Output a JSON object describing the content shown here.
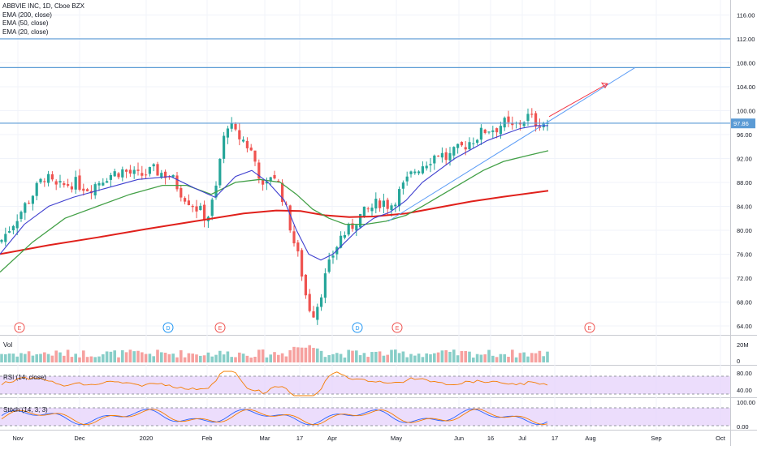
{
  "chart_data": {
    "type": "candlestick",
    "title": "ABBVIE INC, 1D, Cboe BZX",
    "indicators": [
      "EMA (200, close)",
      "EMA (50, close)",
      "EMA (20, close)"
    ],
    "last_price": "97.86",
    "price_axis": [
      "116.00",
      "112.00",
      "108.00",
      "104.00",
      "100.00",
      "96.00",
      "92.00",
      "88.00",
      "84.00",
      "80.00",
      "76.00",
      "72.00",
      "68.00",
      "64.00"
    ],
    "ylim": [
      62.5,
      118.5
    ],
    "time_axis": [
      "Nov",
      "Dec",
      "2020",
      "Feb",
      "Mar",
      "17",
      "Apr",
      "May",
      "Jun",
      "16",
      "Jul",
      "17",
      "Aug",
      "Sep",
      "Oct"
    ],
    "horizontal_lines": [
      112.0,
      107.2,
      97.9
    ],
    "events": [
      "E",
      "D",
      "E",
      "D",
      "E",
      "E"
    ],
    "price_points": [
      [
        0,
        78
      ],
      [
        20,
        82
      ],
      [
        40,
        86
      ],
      [
        55,
        89
      ],
      [
        70,
        87
      ],
      [
        90,
        88
      ],
      [
        110,
        87
      ],
      [
        130,
        89
      ],
      [
        150,
        90
      ],
      [
        170,
        89
      ],
      [
        190,
        90
      ],
      [
        210,
        89
      ],
      [
        225,
        86
      ],
      [
        240,
        84
      ],
      [
        255,
        82
      ],
      [
        265,
        86
      ],
      [
        272,
        93
      ],
      [
        280,
        98
      ],
      [
        290,
        96
      ],
      [
        300,
        95
      ],
      [
        310,
        93
      ],
      [
        318,
        90
      ],
      [
        325,
        86
      ],
      [
        335,
        90
      ],
      [
        345,
        87
      ],
      [
        355,
        82
      ],
      [
        362,
        78
      ],
      [
        370,
        74
      ],
      [
        378,
        68
      ],
      [
        385,
        66
      ],
      [
        392,
        68
      ],
      [
        400,
        72
      ],
      [
        410,
        76
      ],
      [
        420,
        79
      ],
      [
        430,
        80
      ],
      [
        440,
        82
      ],
      [
        450,
        83
      ],
      [
        460,
        84
      ],
      [
        470,
        85
      ],
      [
        480,
        84
      ],
      [
        490,
        86
      ],
      [
        500,
        88
      ],
      [
        510,
        90
      ],
      [
        520,
        91
      ],
      [
        530,
        92
      ],
      [
        540,
        93
      ],
      [
        550,
        92
      ],
      [
        560,
        93
      ],
      [
        570,
        94
      ],
      [
        580,
        95
      ],
      [
        590,
        96
      ],
      [
        600,
        97
      ],
      [
        610,
        97
      ],
      [
        620,
        98
      ],
      [
        630,
        97
      ],
      [
        640,
        98
      ],
      [
        650,
        99
      ],
      [
        660,
        98
      ],
      [
        670,
        98
      ],
      [
        675,
        97.9
      ]
    ],
    "ema20_points": [
      [
        0,
        76
      ],
      [
        30,
        81
      ],
      [
        60,
        84
      ],
      [
        90,
        85.5
      ],
      [
        130,
        87
      ],
      [
        170,
        88.5
      ],
      [
        210,
        89
      ],
      [
        240,
        87
      ],
      [
        265,
        85.5
      ],
      [
        290,
        89
      ],
      [
        310,
        90
      ],
      [
        330,
        88
      ],
      [
        350,
        85
      ],
      [
        365,
        80
      ],
      [
        380,
        76
      ],
      [
        395,
        75
      ],
      [
        410,
        76
      ],
      [
        425,
        78
      ],
      [
        440,
        80
      ],
      [
        460,
        82
      ],
      [
        480,
        83
      ],
      [
        500,
        85
      ],
      [
        520,
        88
      ],
      [
        540,
        90
      ],
      [
        560,
        92
      ],
      [
        580,
        93.5
      ],
      [
        600,
        95
      ],
      [
        620,
        96
      ],
      [
        640,
        97
      ],
      [
        660,
        97.5
      ],
      [
        675,
        97.5
      ]
    ],
    "ema50_points": [
      [
        0,
        73
      ],
      [
        40,
        78
      ],
      [
        80,
        82
      ],
      [
        120,
        84
      ],
      [
        160,
        86
      ],
      [
        200,
        87.5
      ],
      [
        230,
        87.5
      ],
      [
        260,
        86
      ],
      [
        290,
        88
      ],
      [
        320,
        88.5
      ],
      [
        345,
        88
      ],
      [
        365,
        86
      ],
      [
        385,
        83.5
      ],
      [
        405,
        82
      ],
      [
        425,
        81
      ],
      [
        450,
        81
      ],
      [
        475,
        81.5
      ],
      [
        500,
        82.5
      ],
      [
        520,
        84
      ],
      [
        545,
        86
      ],
      [
        570,
        88
      ],
      [
        595,
        90
      ],
      [
        620,
        91.5
      ],
      [
        650,
        92.5
      ],
      [
        675,
        93.3
      ]
    ],
    "ema200_points": [
      [
        0,
        76
      ],
      [
        60,
        77.5
      ],
      [
        120,
        78.8
      ],
      [
        180,
        80.2
      ],
      [
        240,
        81.5
      ],
      [
        300,
        82.8
      ],
      [
        340,
        83.3
      ],
      [
        370,
        83.2
      ],
      [
        400,
        82.5
      ],
      [
        430,
        82.2
      ],
      [
        460,
        82.3
      ],
      [
        500,
        82.8
      ],
      [
        540,
        83.8
      ],
      [
        580,
        84.8
      ],
      [
        620,
        85.6
      ],
      [
        675,
        86.6
      ]
    ],
    "trendlines": [
      {
        "from": [
          478,
          81.5
        ],
        "to": [
          782,
          107.2
        ],
        "color": "#5b9cf6"
      },
      {
        "from": [
          676,
          99.0
        ],
        "to": [
          748,
          104.5
        ],
        "color": "#f23645"
      }
    ],
    "volume_axis": [
      "20M",
      "0"
    ],
    "rsi": {
      "label": "RSI (14, close)",
      "axis": [
        "80.00",
        "40.00"
      ]
    },
    "stoch": {
      "label": "Stoch (14, 3, 3)",
      "axis": [
        "100.00",
        "0.00"
      ]
    }
  },
  "legend": {
    "title": "ABBVIE INC, 1D, Cboe BZX",
    "ema200": "EMA (200, close)",
    "ema50": "EMA (50, close)",
    "ema20": "EMA (20, close)"
  },
  "panes": {
    "volume_label": "Vol",
    "rsi_label": "RSI (14, close)",
    "stoch_label": "Stoch (14, 3, 3)"
  },
  "colors": {
    "up": "#26a69a",
    "down": "#ef5350",
    "ema200": "#e0201b",
    "ema50": "#43a047",
    "ema20": "#3f3fcf",
    "hline": "#5b9bd5",
    "rsi_line": "#f57c00",
    "stoch_k": "#2962ff",
    "stoch_d": "#f57c00",
    "band": "#e7d4fb"
  }
}
